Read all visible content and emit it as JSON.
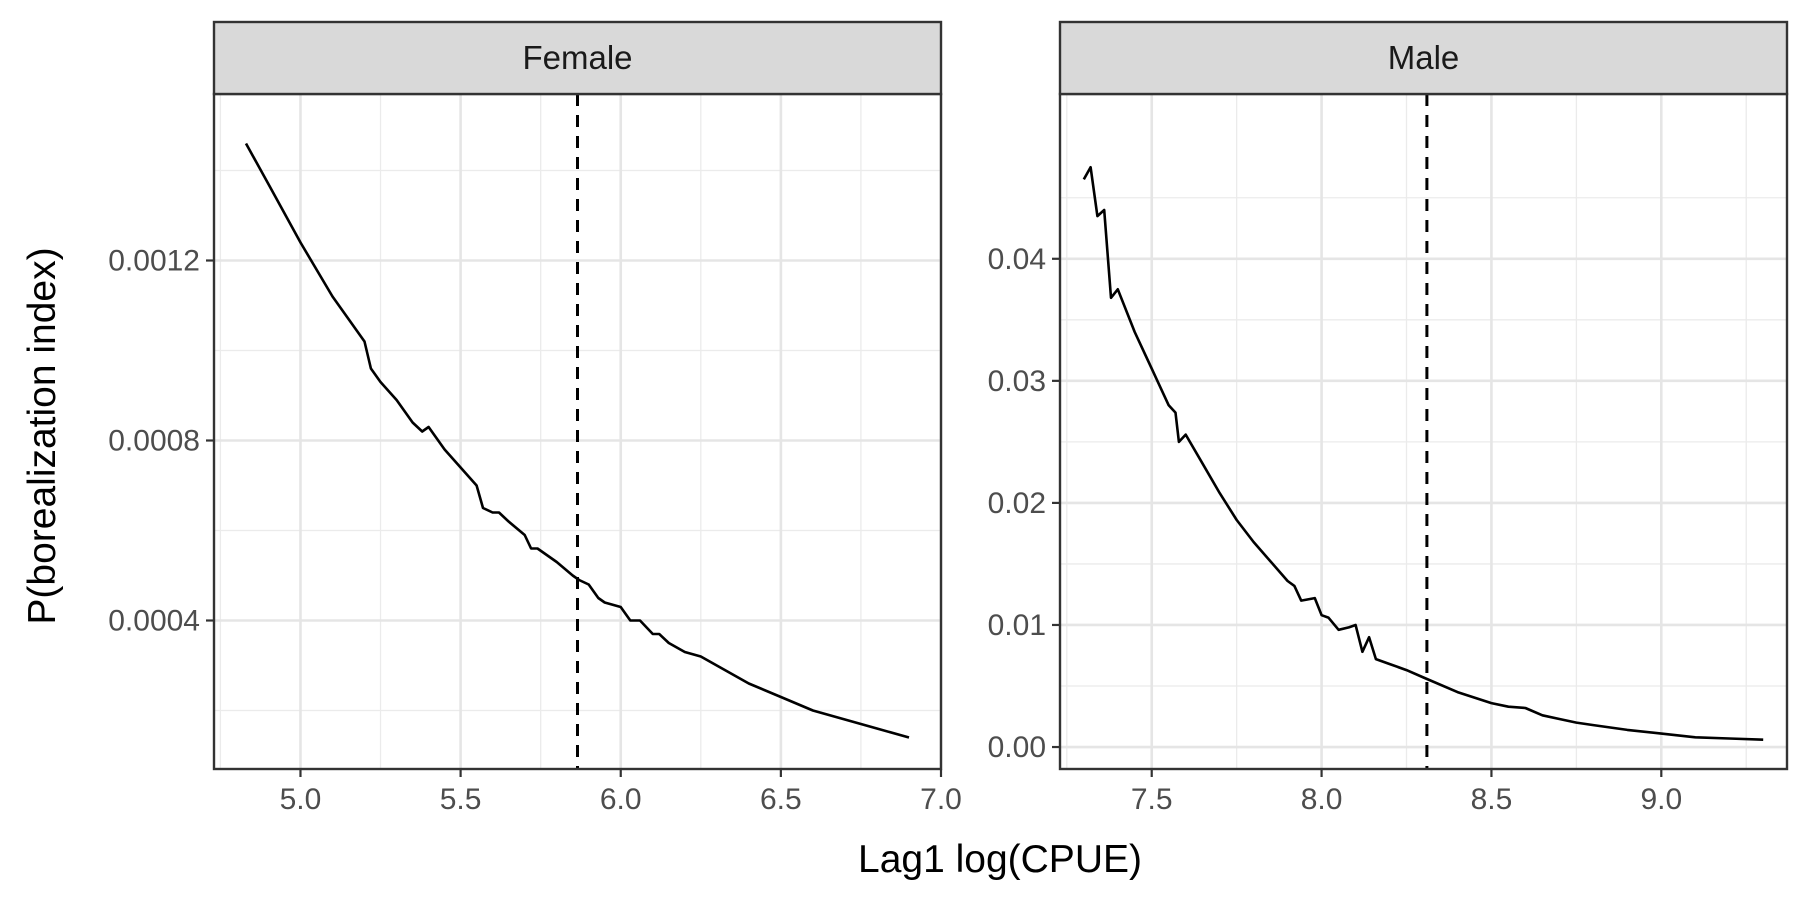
{
  "chart_data": {
    "type": "line",
    "xlabel": "Lag1 log(CPUE)",
    "ylabel": "P(borealization index)",
    "grid": true,
    "panels": [
      {
        "name": "Female",
        "xlim": [
          4.73,
          7.0
        ],
        "ylim": [
          7e-05,
          0.00157
        ],
        "x_ticks": [
          5.0,
          5.5,
          6.0,
          6.5,
          7.0
        ],
        "x_tick_labels": [
          "5.0",
          "5.5",
          "6.0",
          "6.5",
          "7.0"
        ],
        "y_ticks": [
          0.0004,
          0.0008,
          0.0012
        ],
        "y_tick_labels": [
          "0.0004",
          "0.0008",
          "0.0012"
        ],
        "vline_x": 5.865,
        "series": [
          {
            "x": [
              4.83,
              4.9,
              5.0,
              5.1,
              5.2,
              5.22,
              5.25,
              5.3,
              5.35,
              5.38,
              5.4,
              5.45,
              5.5,
              5.55,
              5.57,
              5.6,
              5.62,
              5.65,
              5.7,
              5.72,
              5.74,
              5.8,
              5.85,
              5.87,
              5.9,
              5.93,
              5.95,
              6.0,
              6.03,
              6.06,
              6.1,
              6.12,
              6.15,
              6.2,
              6.25,
              6.3,
              6.4,
              6.5,
              6.6,
              6.7,
              6.8,
              6.9
            ],
            "y": [
              0.00146,
              0.00137,
              0.00124,
              0.00112,
              0.00102,
              0.00096,
              0.00093,
              0.00089,
              0.00084,
              0.00082,
              0.00083,
              0.00078,
              0.00074,
              0.0007,
              0.00065,
              0.00064,
              0.00064,
              0.00062,
              0.00059,
              0.00056,
              0.00056,
              0.00053,
              0.0005,
              0.00049,
              0.00048,
              0.00045,
              0.00044,
              0.00043,
              0.0004,
              0.0004,
              0.00037,
              0.00037,
              0.00035,
              0.00033,
              0.00032,
              0.0003,
              0.00026,
              0.00023,
              0.0002,
              0.00018,
              0.00016,
              0.00014
            ]
          }
        ]
      },
      {
        "name": "Male",
        "xlim": [
          7.23,
          9.37
        ],
        "ylim": [
          -0.0018,
          0.0535
        ],
        "x_ticks": [
          7.5,
          8.0,
          8.5,
          9.0
        ],
        "x_tick_labels": [
          "7.5",
          "8.0",
          "8.5",
          "9.0"
        ],
        "y_ticks": [
          0.0,
          0.01,
          0.02,
          0.03,
          0.04
        ],
        "y_tick_labels": [
          "0.00",
          "0.01",
          "0.02",
          "0.03",
          "0.04"
        ],
        "vline_x": 8.31,
        "series": [
          {
            "x": [
              7.3,
              7.32,
              7.34,
              7.36,
              7.38,
              7.4,
              7.45,
              7.5,
              7.55,
              7.57,
              7.58,
              7.6,
              7.65,
              7.7,
              7.75,
              7.8,
              7.85,
              7.9,
              7.92,
              7.94,
              7.98,
              8.0,
              8.02,
              8.05,
              8.08,
              8.1,
              8.12,
              8.14,
              8.16,
              8.2,
              8.25,
              8.3,
              8.4,
              8.5,
              8.55,
              8.6,
              8.65,
              8.7,
              8.75,
              8.8,
              8.85,
              8.9,
              9.0,
              9.1,
              9.2,
              9.3
            ],
            "y": [
              0.0465,
              0.0475,
              0.0435,
              0.044,
              0.0368,
              0.0375,
              0.034,
              0.031,
              0.028,
              0.0274,
              0.025,
              0.0256,
              0.0232,
              0.0208,
              0.0186,
              0.0168,
              0.0152,
              0.0136,
              0.0132,
              0.012,
              0.0122,
              0.0108,
              0.0106,
              0.0096,
              0.0098,
              0.01,
              0.0078,
              0.009,
              0.0072,
              0.0068,
              0.0063,
              0.0057,
              0.0045,
              0.0036,
              0.0033,
              0.0032,
              0.0026,
              0.0023,
              0.002,
              0.0018,
              0.0016,
              0.0014,
              0.0011,
              0.0008,
              0.0007,
              0.0006
            ]
          }
        ]
      }
    ]
  }
}
